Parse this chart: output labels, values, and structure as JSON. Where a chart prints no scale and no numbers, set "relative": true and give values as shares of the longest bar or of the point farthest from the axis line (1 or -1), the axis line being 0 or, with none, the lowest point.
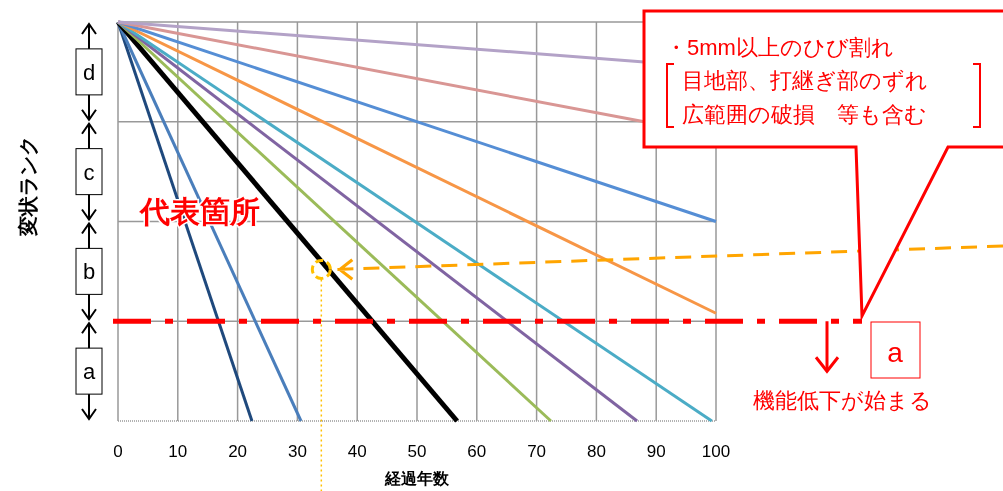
{
  "chart_data": {
    "type": "line",
    "relative": true,
    "xlabel": "経過年数",
    "ylabel": "変状ランク",
    "xlim": [
      0,
      100
    ],
    "xticks": [
      0,
      10,
      20,
      30,
      40,
      50,
      60,
      70,
      80,
      90,
      100
    ],
    "grid": "x",
    "line_style": "solid",
    "marker": "none",
    "series": [
      {
        "color": "#1f497d",
        "x": [
          0,
          22.4
        ],
        "values": [
          1,
          0
        ]
      },
      {
        "color": "#4a7ebb",
        "x": [
          0,
          30.6
        ],
        "values": [
          1,
          0
        ]
      },
      {
        "color": "#000000",
        "x": [
          0,
          56.7
        ],
        "values": [
          1,
          0
        ]
      },
      {
        "color": "#9bbb59",
        "x": [
          0,
          72.4
        ],
        "values": [
          1,
          0
        ]
      },
      {
        "color": "#8064a2",
        "x": [
          0,
          86.8
        ],
        "values": [
          1,
          0
        ]
      },
      {
        "color": "#4bacc6",
        "x": [
          0,
          99.3
        ],
        "values": [
          1,
          0
        ]
      },
      {
        "color": "#f79646",
        "x": [
          0,
          100
        ],
        "values": [
          1,
          0.27
        ]
      },
      {
        "color": "#558ed5",
        "x": [
          0,
          100
        ],
        "values": [
          1,
          0.5
        ]
      },
      {
        "color": "#d99694",
        "x": [
          0,
          88
        ],
        "values": [
          1,
          0.75
        ]
      },
      {
        "color": "#b3a2c7",
        "x": [
          0,
          88
        ],
        "values": [
          1,
          0.9
        ]
      }
    ],
    "ref_lines": [
      {
        "axis": "y",
        "value": 0.25,
        "label": "機能低下が始まる",
        "color": "#ff0000",
        "line_style": "dashdot"
      },
      {
        "axis": "x",
        "value": 34,
        "color": "#ffc000",
        "line_style": "dotted"
      }
    ],
    "annotations": [
      {
        "text": "代表箇所",
        "x": 34,
        "y": 0.38
      },
      "・5mm以上のひび割れ",
      "目地部、打継ぎ部のずれ",
      "広範囲の破損　等も含む",
      "a",
      "d",
      "c",
      "b",
      "a"
    ]
  }
}
